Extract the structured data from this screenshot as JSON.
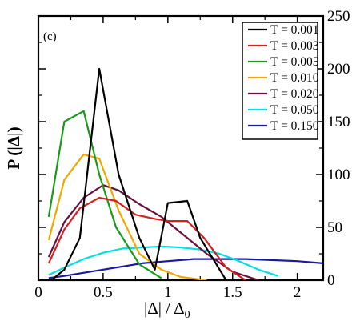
{
  "chart_data": {
    "type": "line",
    "panel_label": "(c)",
    "title": "",
    "xlabel": "|Δ| / Δ",
    "xlabel_sub": "0",
    "ylabel": "P (|Δ|)",
    "xlim": [
      0,
      2.2
    ],
    "ylim": [
      0,
      250
    ],
    "x_ticks": [
      "0",
      "0.5",
      "1",
      "1.5",
      "2"
    ],
    "x_tick_values": [
      0,
      0.5,
      1,
      1.5,
      2
    ],
    "y_ticks": [
      "0",
      "50",
      "100",
      "150",
      "200",
      "250"
    ],
    "y_tick_values": [
      0,
      50,
      100,
      150,
      200,
      250
    ],
    "y_axis_side": "right",
    "legend_position": "top-right",
    "grid": false,
    "series": [
      {
        "name": "T = 0.001",
        "color": "#000000",
        "x": [
          0.1,
          0.2,
          0.32,
          0.47,
          0.62,
          0.78,
          0.9,
          1.0,
          1.15,
          1.25,
          1.45
        ],
        "y": [
          0,
          10,
          40,
          200,
          100,
          40,
          10,
          73,
          75,
          40,
          0
        ]
      },
      {
        "name": "T = 0.003",
        "color": "#d42020",
        "x": [
          0.08,
          0.2,
          0.32,
          0.47,
          0.6,
          0.75,
          0.9,
          1.0,
          1.15,
          1.28,
          1.45,
          1.6
        ],
        "y": [
          16,
          48,
          68,
          78,
          75,
          62,
          58,
          56,
          56,
          40,
          12,
          0
        ]
      },
      {
        "name": "T = 0.005",
        "color": "#1a9a1a",
        "x": [
          0.08,
          0.2,
          0.35,
          0.47,
          0.6,
          0.78,
          0.95
        ],
        "y": [
          60,
          150,
          160,
          100,
          50,
          15,
          2
        ]
      },
      {
        "name": "T = 0.010",
        "color": "#f0a800",
        "x": [
          0.08,
          0.2,
          0.35,
          0.47,
          0.62,
          0.78,
          0.95,
          1.1,
          1.3
        ],
        "y": [
          38,
          95,
          119,
          115,
          66,
          25,
          10,
          3,
          0
        ]
      },
      {
        "name": "T = 0.020",
        "color": "#6a1040",
        "x": [
          0.08,
          0.2,
          0.35,
          0.5,
          0.62,
          0.78,
          0.95,
          1.1,
          1.3,
          1.5,
          1.7
        ],
        "y": [
          22,
          55,
          78,
          90,
          85,
          72,
          60,
          45,
          25,
          8,
          0
        ]
      },
      {
        "name": "T = 0.050",
        "color": "#00e0e0",
        "x": [
          0.08,
          0.2,
          0.35,
          0.5,
          0.65,
          0.8,
          0.95,
          1.1,
          1.25,
          1.4,
          1.55,
          1.7,
          1.85
        ],
        "y": [
          5,
          12,
          20,
          26,
          30,
          31,
          32,
          31,
          29,
          25,
          18,
          10,
          4
        ]
      },
      {
        "name": "T = 0.150",
        "color": "#1a1aa0",
        "x": [
          0.08,
          0.2,
          0.4,
          0.6,
          0.8,
          1.0,
          1.2,
          1.4,
          1.6,
          1.8,
          2.0,
          2.2
        ],
        "y": [
          2,
          4,
          8,
          12,
          16,
          18,
          20,
          20,
          20,
          19,
          18,
          16
        ]
      }
    ]
  }
}
